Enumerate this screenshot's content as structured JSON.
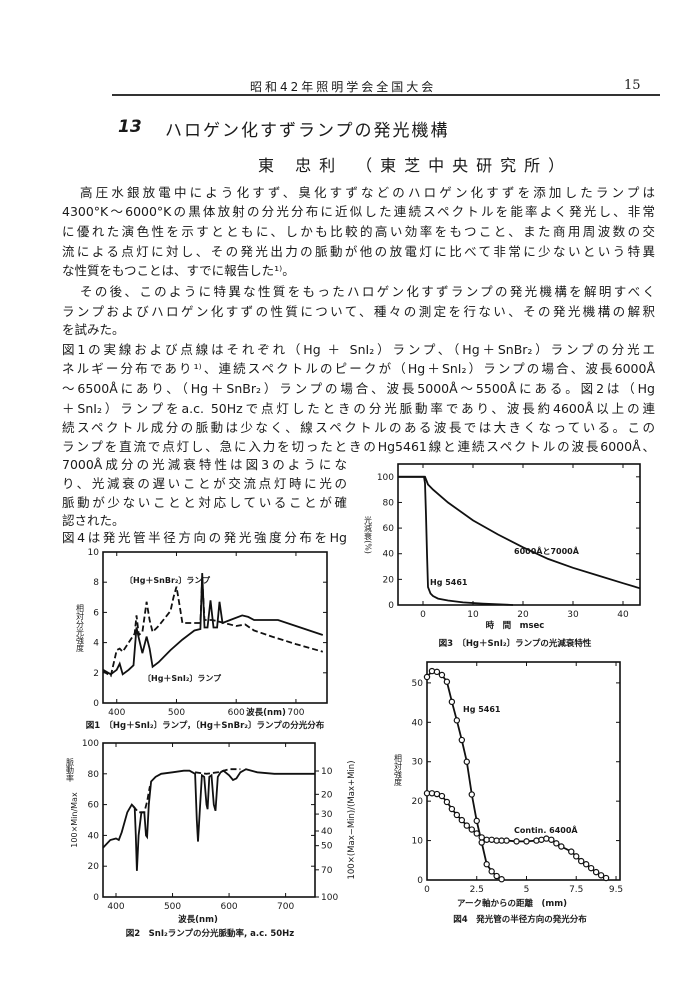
{
  "header": {
    "text": "昭和42年照明学会全国大会",
    "page_number": "15"
  },
  "paper": {
    "number": "13",
    "title": "ハロゲン化すずランプの発光機構",
    "author": "東 忠利 （東芝中央研究所）"
  },
  "body_lines": [
    "高圧水銀放電中によう化すず、臭化すずなどのハロゲン化すずを添加したランプは",
    "4300°K～6000°Kの黒体放射の分光分布に近似した連続スペクトルを能率よく発光し、非常",
    "に優れた演色性を示すとともに、しかも比較的高い効率をもつこと、また商用周波数の交",
    "流による点灯に対し、その発光出力の脈動が他の放電灯に比べて非常に少ないという特異",
    "な性質をもつことは、すでに報告した¹⁾。",
    "その後、このように特異な性質をもったハロゲン化すずランプの発光機構を解明すべく",
    "ランプおよびハロゲン化すずの性質について、種々の測定を行ない、その発光機構の解釈",
    "を試みた。",
    "図1の実線および点線はそれぞれ（Hg ＋ SnI₂）ランプ、（Hg＋SnBr₂）ランプの分光エ",
    "ネルギー分布であり¹⁾、連続スペクトルのピークが（Hg＋SnI₂）ランプの場合、波長6000Å",
    "～6500Åにあり、（Hg＋SnBr₂）ランプの場合、波長5000Å～5500Åにある。図2は（Hg",
    "＋SnI₂）ランプをa.c. 50Hzで点灯したときの分光脈動率であり、波長約4600Å以上の連",
    "続スペクトル成分の脈動は少なく、線スペクトルのある波長では大きくなっている。この",
    "ランプを直流で点灯し、急に入力を切ったときのHg5461線と連続スペクトルの波長6000Å、",
    "7000Å成分の光減衰特性は図3のようにな",
    "り、光減衰の遅いことが交流点灯時に光の",
    "脈動が少ないことと対応していることが確",
    "認された。",
    "図4は発光管半径方向の発光強度分布をHg"
  ],
  "chart_data": [
    {
      "type": "line",
      "caption": "図1　〔Hg＋SnI₂〕ランプ，〔Hg＋SnBr₂〕ランプの分光分布",
      "xlabel": "波長(nm)",
      "ylabel": "相対分光強度",
      "xlim": [
        377,
        752
      ],
      "ylim": [
        0,
        10
      ],
      "xticks": [
        400,
        500,
        600,
        700
      ],
      "yticks": [
        0,
        2,
        4,
        6,
        8,
        10
      ],
      "series": [
        {
          "name": "〔Hg＋SnI₂〕ランプ",
          "style": "solid",
          "x": [
            377,
            390,
            400,
            405,
            410,
            420,
            428,
            433,
            437,
            443,
            450,
            455,
            460,
            470,
            490,
            510,
            530,
            540,
            543,
            547,
            552,
            557,
            562,
            568,
            572,
            577,
            590,
            610,
            620,
            630,
            650,
            670,
            700,
            745
          ],
          "y": [
            2.2,
            1.9,
            2.2,
            2.6,
            1.9,
            2.2,
            2.5,
            5.0,
            4.3,
            3.3,
            4.4,
            3.6,
            2.4,
            2.7,
            3.5,
            4.2,
            4.8,
            4.9,
            8.6,
            5.0,
            5.0,
            6.8,
            5.0,
            5.0,
            6.7,
            5.3,
            5.5,
            5.8,
            5.7,
            5.5,
            5.5,
            5.5,
            5.1,
            4.5
          ]
        },
        {
          "name": "〔Hg＋SnBr₂〕ランプ",
          "style": "dashed",
          "x": [
            377,
            390,
            400,
            405,
            410,
            420,
            430,
            433,
            437,
            443,
            450,
            455,
            460,
            470,
            490,
            495,
            500,
            505,
            510,
            530,
            540,
            543,
            547,
            560,
            580,
            600,
            615,
            630,
            660,
            700,
            745
          ],
          "y": [
            2.1,
            1.8,
            3.5,
            3.6,
            3.4,
            4.0,
            4.6,
            5.8,
            4.5,
            4.7,
            6.7,
            5.5,
            4.7,
            5.1,
            6.1,
            7.0,
            7.7,
            6.5,
            5.3,
            5.3,
            5.3,
            8.3,
            5.5,
            5.5,
            5.3,
            5.1,
            5.2,
            4.8,
            4.4,
            3.9,
            3.4
          ]
        }
      ]
    },
    {
      "type": "line",
      "caption": "図2　SnI₂ランプの分光脈動率, a.c. 50Hz",
      "xlabel": "波長(nm)",
      "ylabel": "100×Min/Max",
      "ylabel2": "脈動率",
      "ylabel_right": "100×(Max−Min)/(Max+Min)",
      "xlim": [
        377,
        752
      ],
      "ylim": [
        0,
        100
      ],
      "xticks": [
        400,
        500,
        600,
        700
      ],
      "yticks": [
        0,
        20,
        40,
        60,
        80,
        100
      ],
      "yticks_right": [
        10,
        20,
        30,
        40,
        50,
        70,
        100
      ],
      "series": [
        {
          "name": "solid",
          "style": "solid",
          "x": [
            377,
            390,
            400,
            405,
            410,
            420,
            428,
            433,
            435,
            437,
            440,
            445,
            450,
            453,
            455,
            458,
            462,
            470,
            480,
            500,
            520,
            530,
            540,
            543,
            545,
            548,
            552,
            556,
            560,
            562,
            565,
            569,
            573,
            576,
            580,
            585,
            590,
            600,
            607,
            613,
            620,
            630,
            650,
            680,
            720,
            752
          ],
          "y": [
            32,
            37,
            38,
            37,
            42,
            55,
            60,
            58,
            40,
            17,
            40,
            55,
            55,
            40,
            39,
            60,
            75,
            78,
            80,
            81,
            82,
            82,
            80,
            50,
            36,
            55,
            79,
            78,
            60,
            57,
            78,
            79,
            60,
            56,
            78,
            81,
            82,
            79,
            76,
            77,
            81,
            83,
            81,
            80,
            80,
            80
          ]
        },
        {
          "name": "dashed-1",
          "style": "dashed",
          "x": [
            430,
            440,
            450,
            455,
            460
          ],
          "y": [
            59,
            55,
            55,
            62,
            72
          ]
        },
        {
          "name": "dashed-2",
          "style": "dashed",
          "x": [
            540,
            560,
            580,
            600,
            620
          ],
          "y": [
            81,
            80,
            81,
            83,
            83
          ]
        }
      ]
    },
    {
      "type": "line",
      "caption": "図3　〔Hg＋SnI₂〕ランプの光減衰特性",
      "xlabel": "時　間　msec",
      "ylabel": "光減衰(%)",
      "xlim": [
        -5,
        43.4
      ],
      "ylim": [
        0,
        110
      ],
      "xticks": [
        0,
        10,
        20,
        30,
        40
      ],
      "yticks": [
        0,
        20,
        40,
        60,
        80,
        100
      ],
      "annotations": [
        "6000Åと7000Å",
        "Hg 5461"
      ],
      "series": [
        {
          "name": "Hg 5461",
          "style": "solid",
          "x": [
            -5,
            0.2,
            0.4,
            0.6,
            0.8,
            1.0,
            1.5,
            2,
            3,
            5,
            8,
            12,
            18
          ],
          "y": [
            100,
            100,
            95,
            70,
            40,
            14,
            9,
            7,
            5,
            3.5,
            2,
            1,
            0
          ]
        },
        {
          "name": "6000Åと7000Å",
          "style": "solid",
          "x": [
            -5,
            0.4,
            1,
            2,
            5,
            10,
            15,
            20,
            25,
            30,
            35,
            40,
            43.4
          ],
          "y": [
            100,
            100,
            94,
            90,
            80,
            66,
            55,
            45,
            36,
            29,
            23,
            17,
            13
          ]
        }
      ]
    },
    {
      "type": "scatter",
      "caption": "図4　発光管の半径方向の発光分布",
      "xlabel": "アーク軸からの距離　(mm)",
      "ylabel": "相対強度",
      "xlim": [
        0,
        9.7
      ],
      "ylim": [
        0,
        55.3
      ],
      "xticks": [
        "0",
        "2.5",
        "5",
        "7.5",
        "9.5"
      ],
      "xtick_values": [
        0,
        2.5,
        5,
        7.5,
        9.5
      ],
      "yticks": [
        0,
        10,
        20,
        30,
        40,
        50
      ],
      "annotations": [
        "Hg 5461",
        "Contin. 6400Å"
      ],
      "series": [
        {
          "name": "Hg 5461",
          "x": [
            0,
            0.25,
            0.5,
            0.75,
            1,
            1.25,
            1.5,
            1.75,
            2,
            2.25,
            2.5,
            2.75,
            3,
            3.25,
            3.5,
            3.75
          ],
          "y": [
            51.5,
            53,
            52.8,
            52,
            50.3,
            45.2,
            40.5,
            35.5,
            30,
            21.7,
            15,
            9.5,
            4,
            2.2,
            1,
            0.2
          ]
        },
        {
          "name": "Contin. 6400Å",
          "x": [
            0,
            0.25,
            0.5,
            0.75,
            1,
            1.25,
            1.5,
            1.75,
            2,
            2.25,
            2.5,
            2.75,
            3,
            3.25,
            3.5,
            3.75,
            4,
            4.5,
            5,
            5.5,
            5.75,
            6,
            6.25,
            6.5,
            6.75,
            7.25,
            7.5,
            7.75,
            8,
            8.25,
            8.5,
            8.75,
            9
          ],
          "y": [
            22,
            22,
            21.8,
            21.3,
            19.8,
            18,
            16.5,
            15.2,
            13.8,
            12.8,
            11.8,
            10.8,
            10.2,
            10.2,
            10,
            10,
            10,
            9.8,
            9.8,
            10,
            10.2,
            10.5,
            10.2,
            9.3,
            8.5,
            7.2,
            6,
            4.8,
            4,
            3,
            2,
            1.2,
            0.5
          ]
        }
      ]
    }
  ]
}
